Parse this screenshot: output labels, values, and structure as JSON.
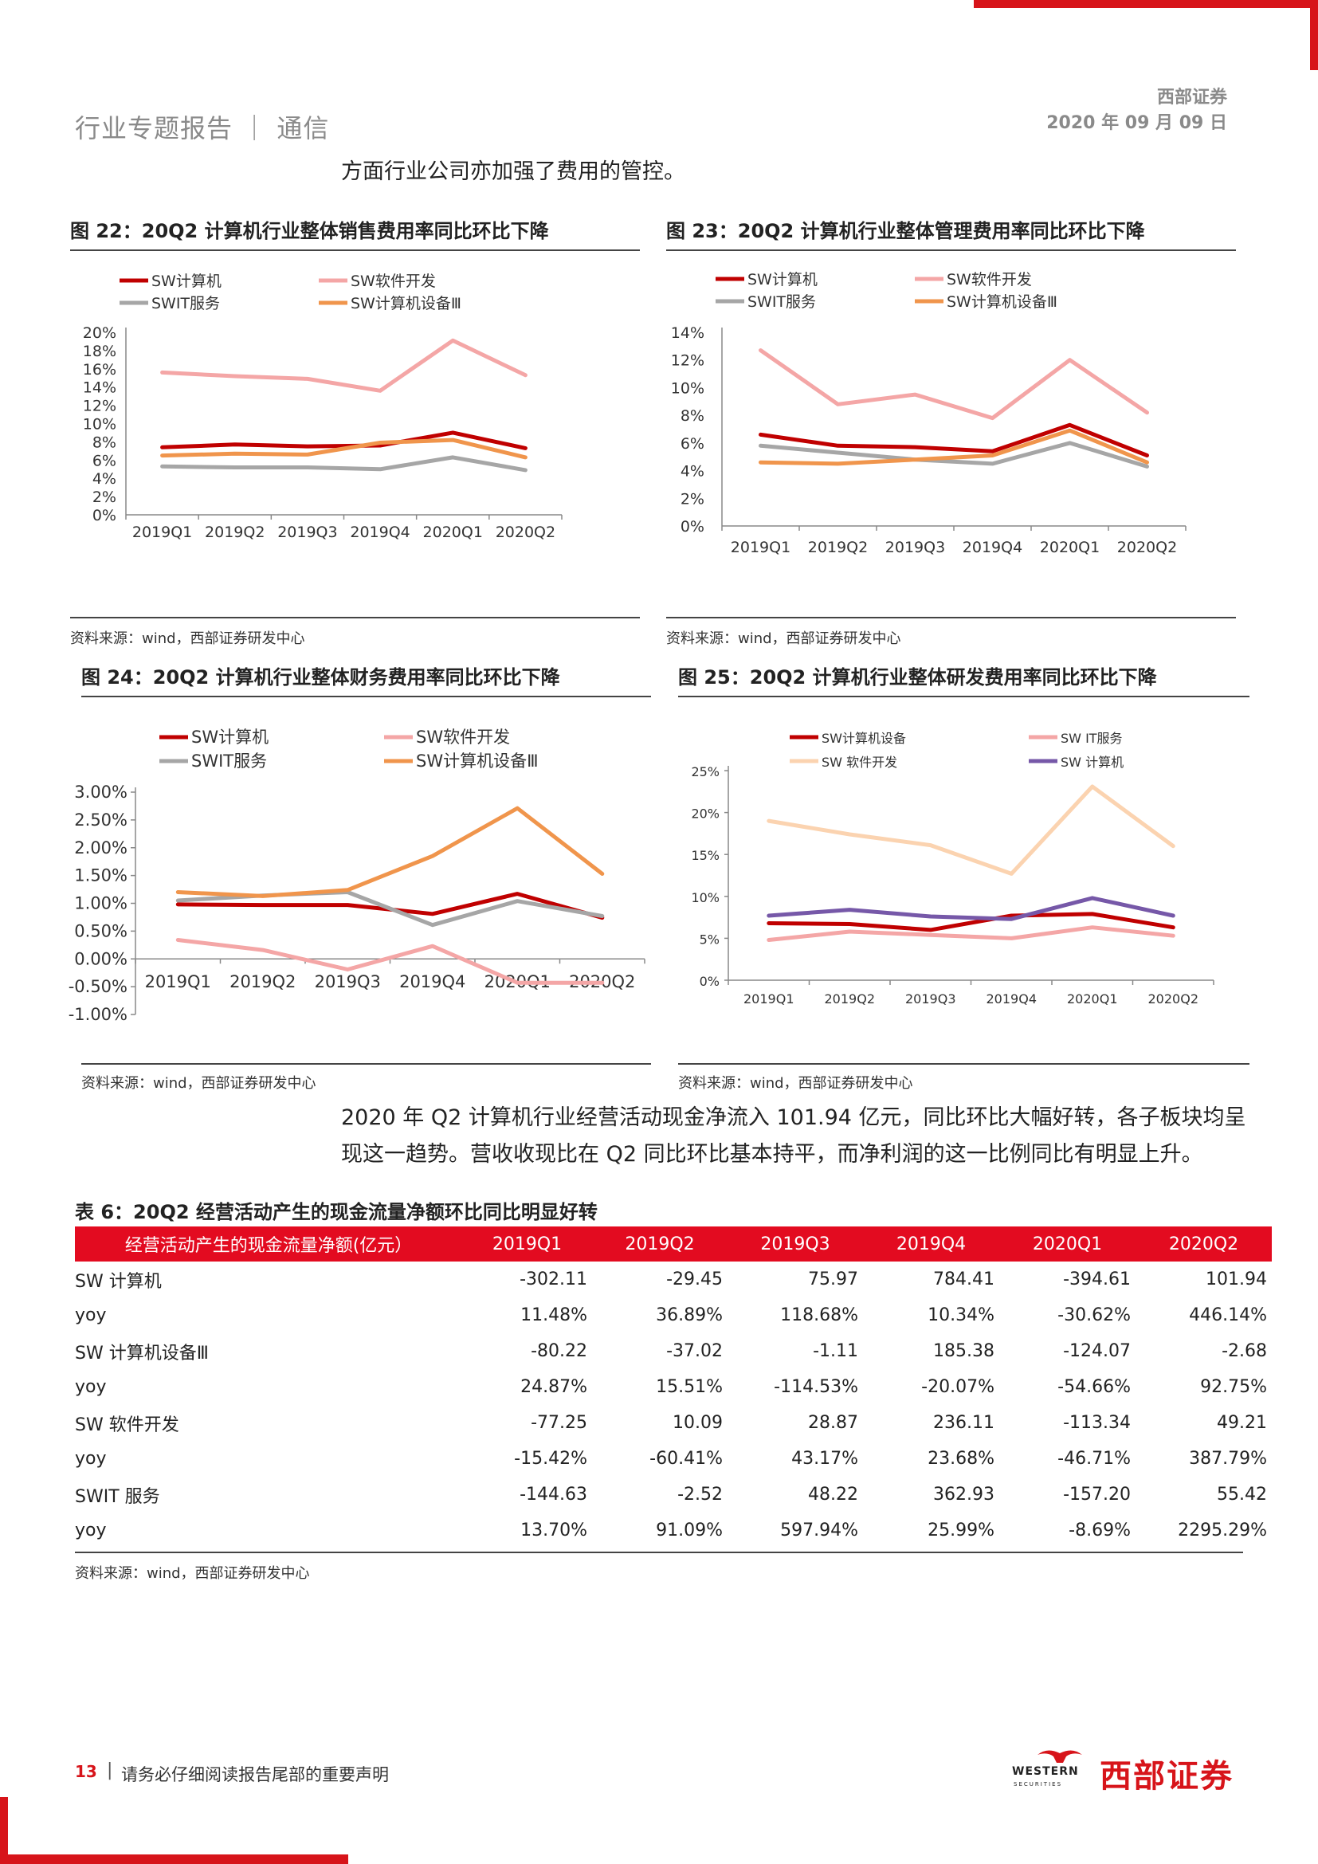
{
  "header": {
    "report_title": "行业专题报告 ｜ 通信",
    "company": "西部证券",
    "date": "2020 年 09 月 09 日"
  },
  "intro_text": "方面行业公司亦加强了费用的管控。",
  "fig22": {
    "title": "图 22：20Q2 计算机行业整体销售费用率同比环比下降",
    "source": "资料来源：wind，西部证券研发中心",
    "legend": [
      "SW计算机",
      "SW软件开发",
      "SWIT服务",
      "SW计算机设备Ⅲ"
    ],
    "yticks": [
      "20%",
      "18%",
      "16%",
      "14%",
      "12%",
      "10%",
      "8%",
      "6%",
      "4%",
      "2%",
      "0%"
    ],
    "xticks": [
      "2019Q1",
      "2019Q2",
      "2019Q3",
      "2019Q4",
      "2020Q1",
      "2020Q2"
    ]
  },
  "fig23": {
    "title": "图 23：20Q2 计算机行业整体管理费用率同比环比下降",
    "source": "资料来源：wind，西部证券研发中心",
    "legend": [
      "SW计算机",
      "SW软件开发",
      "SWIT服务",
      "SW计算机设备Ⅲ"
    ],
    "yticks": [
      "14%",
      "12%",
      "10%",
      "8%",
      "6%",
      "4%",
      "2%",
      "0%"
    ],
    "xticks": [
      "2019Q1",
      "2019Q2",
      "2019Q3",
      "2019Q4",
      "2020Q1",
      "2020Q2"
    ]
  },
  "fig24": {
    "title": "图 24：20Q2 计算机行业整体财务费用率同比环比下降",
    "source": "资料来源：wind，西部证券研发中心",
    "legend": [
      "SW计算机",
      "SW软件开发",
      "SWIT服务",
      "SW计算机设备Ⅲ"
    ],
    "yticks": [
      "3.00%",
      "2.50%",
      "2.00%",
      "1.50%",
      "1.00%",
      "0.50%",
      "0.00%",
      "-0.50%",
      "-1.00%"
    ],
    "xticks": [
      "2019Q1",
      "2019Q2",
      "2019Q3",
      "2019Q4",
      "2020Q1",
      "2020Q2"
    ]
  },
  "fig25": {
    "title": "图 25：20Q2 计算机行业整体研发费用率同比环比下降",
    "source": "资料来源：wind，西部证券研发中心",
    "legend": [
      "SW计算机设备",
      "SW IT服务",
      "SW 软件开发",
      "SW 计算机"
    ],
    "yticks": [
      "25%",
      "20%",
      "15%",
      "10%",
      "5%",
      "0%"
    ],
    "xticks": [
      "2019Q1",
      "2019Q2",
      "2019Q3",
      "2019Q4",
      "2020Q1",
      "2020Q2"
    ]
  },
  "chart_data": [
    {
      "type": "line",
      "x": [
        "2019Q1",
        "2019Q2",
        "2019Q3",
        "2019Q4",
        "2020Q1",
        "2020Q2"
      ],
      "ylim": [
        0,
        20
      ],
      "series": [
        {
          "name": "SW计算机",
          "color": "#c00000",
          "values": [
            7.4,
            7.7,
            7.5,
            7.6,
            9.0,
            7.3
          ]
        },
        {
          "name": "SW软件开发",
          "color": "#f4a6a6",
          "values": [
            15.6,
            15.2,
            14.9,
            13.6,
            19.1,
            15.3
          ]
        },
        {
          "name": "SWIT服务",
          "color": "#a6a6a6",
          "values": [
            5.3,
            5.2,
            5.2,
            5.0,
            6.3,
            4.9
          ]
        },
        {
          "name": "SW计算机设备Ⅲ",
          "color": "#f0954c",
          "values": [
            6.5,
            6.7,
            6.6,
            7.9,
            8.2,
            6.3
          ]
        }
      ]
    },
    {
      "type": "line",
      "x": [
        "2019Q1",
        "2019Q2",
        "2019Q3",
        "2019Q4",
        "2020Q1",
        "2020Q2"
      ],
      "ylim": [
        0,
        14
      ],
      "series": [
        {
          "name": "SW计算机",
          "color": "#c00000",
          "values": [
            6.6,
            5.8,
            5.7,
            5.4,
            7.3,
            5.1
          ]
        },
        {
          "name": "SW软件开发",
          "color": "#f4a6a6",
          "values": [
            12.7,
            8.8,
            9.5,
            7.8,
            12.0,
            8.2
          ]
        },
        {
          "name": "SWIT服务",
          "color": "#a6a6a6",
          "values": [
            5.8,
            5.3,
            4.8,
            4.5,
            6.0,
            4.3
          ]
        },
        {
          "name": "SW计算机设备Ⅲ",
          "color": "#f0954c",
          "values": [
            4.6,
            4.5,
            4.8,
            5.1,
            6.9,
            4.6
          ]
        }
      ]
    },
    {
      "type": "line",
      "x": [
        "2019Q1",
        "2019Q2",
        "2019Q3",
        "2019Q4",
        "2020Q1",
        "2020Q2"
      ],
      "ylim": [
        -1.0,
        3.0
      ],
      "series": [
        {
          "name": "SW计算机",
          "color": "#c00000",
          "values": [
            0.98,
            0.97,
            0.97,
            0.81,
            1.17,
            0.74
          ]
        },
        {
          "name": "SW软件开发",
          "color": "#f4a6a6",
          "values": [
            0.34,
            0.16,
            -0.19,
            0.23,
            -0.43,
            -0.43
          ]
        },
        {
          "name": "SWIT服务",
          "color": "#a6a6a6",
          "values": [
            1.05,
            1.14,
            1.2,
            0.61,
            1.04,
            0.77
          ]
        },
        {
          "name": "SW计算机设备Ⅲ",
          "color": "#f0954c",
          "values": [
            1.2,
            1.13,
            1.24,
            1.85,
            2.71,
            1.53
          ]
        }
      ]
    },
    {
      "type": "line",
      "x": [
        "2019Q1",
        "2019Q2",
        "2019Q3",
        "2019Q4",
        "2020Q1",
        "2020Q2"
      ],
      "ylim": [
        0,
        25
      ],
      "series": [
        {
          "name": "SW计算机设备",
          "color": "#c00000",
          "values": [
            6.8,
            6.7,
            6.0,
            7.7,
            7.9,
            6.3
          ]
        },
        {
          "name": "SW IT服务",
          "color": "#f4a6a6",
          "values": [
            4.8,
            5.8,
            5.4,
            5.0,
            6.3,
            5.3
          ]
        },
        {
          "name": "SW 软件开发",
          "color": "#fbd3b0",
          "values": [
            19.0,
            17.4,
            16.1,
            12.7,
            23.1,
            16.0
          ]
        },
        {
          "name": "SW 计算机",
          "color": "#7658a8",
          "values": [
            7.7,
            8.4,
            7.6,
            7.3,
            9.8,
            7.7
          ]
        }
      ]
    }
  ],
  "para2": {
    "line1": "2020 年 Q2 计算机行业经营活动现金净流入 101.94 亿元，同比环比大幅好转，各子板块均呈",
    "line2": "现这一趋势。营收收现比在 Q2 同比环比基本持平，而净利润的这一比例同比有明显上升。"
  },
  "table6": {
    "title": "表 6：20Q2 经营活动产生的现金流量净额环比同比明显好转",
    "headers": [
      "经营活动产生的现金流量净额(亿元）",
      "2019Q1",
      "2019Q2",
      "2019Q3",
      "2019Q4",
      "2020Q1",
      "2020Q2"
    ],
    "rows": [
      [
        "SW 计算机",
        "-302.11",
        "-29.45",
        "75.97",
        "784.41",
        "-394.61",
        "101.94"
      ],
      [
        "yoy",
        "11.48%",
        "36.89%",
        "118.68%",
        "10.34%",
        "-30.62%",
        "446.14%"
      ],
      [
        "SW 计算机设备Ⅲ",
        "-80.22",
        "-37.02",
        "-1.11",
        "185.38",
        "-124.07",
        "-2.68"
      ],
      [
        "yoy",
        "24.87%",
        "15.51%",
        "-114.53%",
        "-20.07%",
        "-54.66%",
        "92.75%"
      ],
      [
        "SW 软件开发",
        "-77.25",
        "10.09",
        "28.87",
        "236.11",
        "-113.34",
        "49.21"
      ],
      [
        "yoy",
        "-15.42%",
        "-60.41%",
        "43.17%",
        "23.68%",
        "-46.71%",
        "387.79%"
      ],
      [
        "SWIT 服务",
        "-144.63",
        "-2.52",
        "48.22",
        "362.93",
        "-157.20",
        "55.42"
      ],
      [
        "yoy",
        "13.70%",
        "91.09%",
        "597.94%",
        "25.99%",
        "-8.69%",
        "2295.29%"
      ]
    ],
    "source": "资料来源：wind，西部证券研发中心"
  },
  "footer": {
    "page": "13",
    "sep": "|",
    "notice": "请务必仔细阅读报告尾部的重要声明",
    "logo_en": "WESTERN",
    "logo_en_sub": "SECURITIES",
    "logo_cn": "西部证券"
  }
}
